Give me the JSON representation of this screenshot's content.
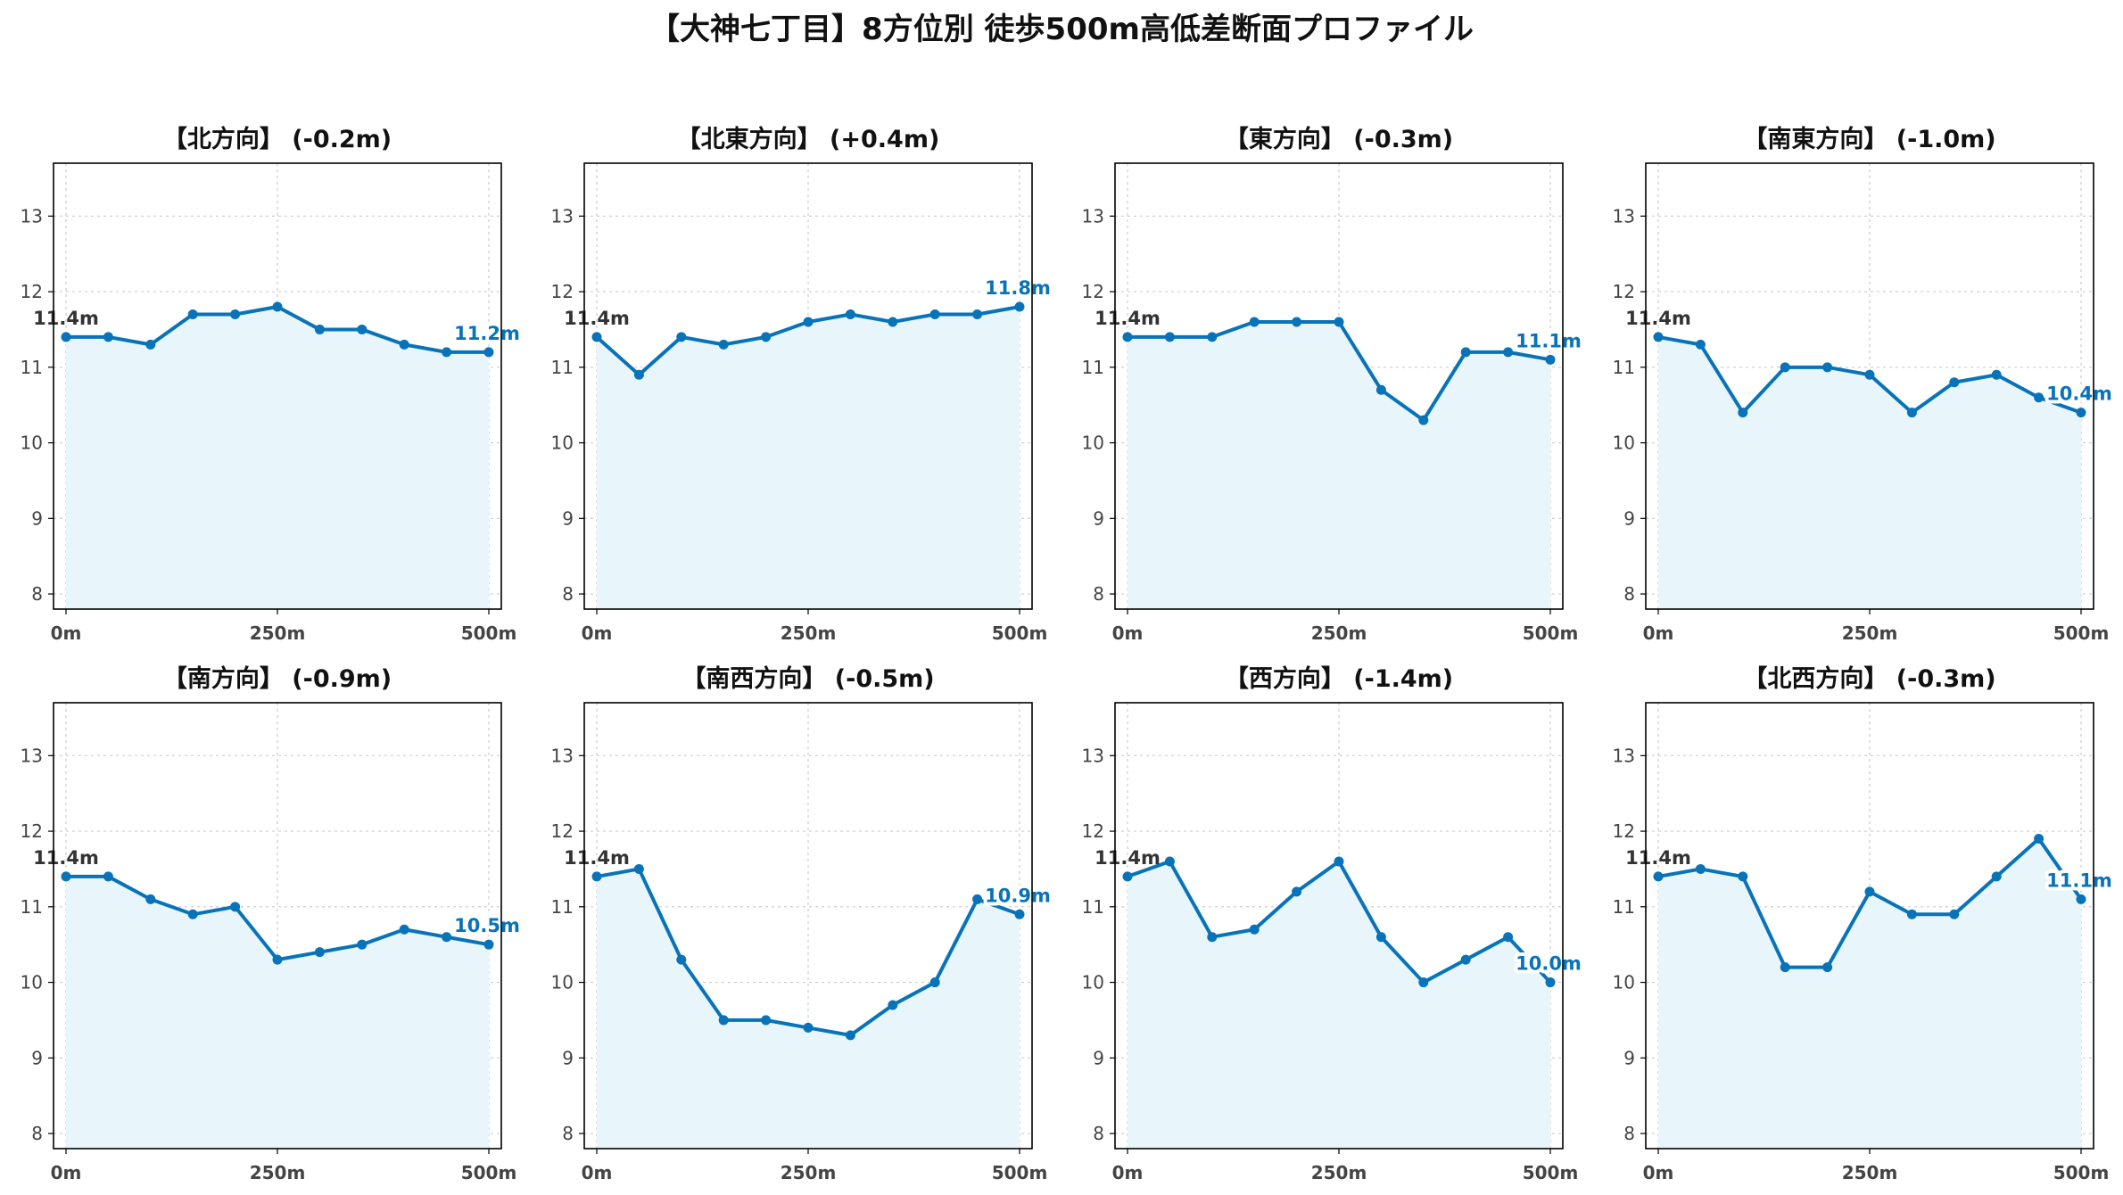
{
  "figure": {
    "title": "【大神七丁目】8方位別 徒歩500m高低差断面プロファイル"
  },
  "colors": {
    "line": "#0873b9",
    "fill": "#e8f6fc",
    "start_label": "#333333",
    "end_label": "#0873b9"
  },
  "chart_data": [
    {
      "type": "area",
      "title": "【北方向】 (-0.2m)",
      "x": [
        0,
        50,
        100,
        150,
        200,
        250,
        300,
        350,
        400,
        450,
        500
      ],
      "y": [
        11.4,
        11.4,
        11.3,
        11.7,
        11.7,
        11.8,
        11.5,
        11.5,
        11.3,
        11.2,
        11.2
      ],
      "xticks": [
        "0m",
        "250m",
        "500m"
      ],
      "yticks": [
        "8",
        "9",
        "10",
        "11",
        "12",
        "13"
      ],
      "ylim": [
        7.8,
        13.7
      ],
      "start_label": "11.4m",
      "end_label": "11.2m",
      "grid": true
    },
    {
      "type": "area",
      "title": "【北東方向】 (+0.4m)",
      "x": [
        0,
        50,
        100,
        150,
        200,
        250,
        300,
        350,
        400,
        450,
        500
      ],
      "y": [
        11.4,
        10.9,
        11.4,
        11.3,
        11.4,
        11.6,
        11.7,
        11.6,
        11.7,
        11.7,
        11.8
      ],
      "xticks": [
        "0m",
        "250m",
        "500m"
      ],
      "yticks": [
        "8",
        "9",
        "10",
        "11",
        "12",
        "13"
      ],
      "ylim": [
        7.8,
        13.7
      ],
      "start_label": "11.4m",
      "end_label": "11.8m",
      "grid": true
    },
    {
      "type": "area",
      "title": "【東方向】 (-0.3m)",
      "x": [
        0,
        50,
        100,
        150,
        200,
        250,
        300,
        350,
        400,
        450,
        500
      ],
      "y": [
        11.4,
        11.4,
        11.4,
        11.6,
        11.6,
        11.6,
        10.7,
        10.3,
        11.2,
        11.2,
        11.1
      ],
      "xticks": [
        "0m",
        "250m",
        "500m"
      ],
      "yticks": [
        "8",
        "9",
        "10",
        "11",
        "12",
        "13"
      ],
      "ylim": [
        7.8,
        13.7
      ],
      "start_label": "11.4m",
      "end_label": "11.1m",
      "grid": true
    },
    {
      "type": "area",
      "title": "【南東方向】 (-1.0m)",
      "x": [
        0,
        50,
        100,
        150,
        200,
        250,
        300,
        350,
        400,
        450,
        500
      ],
      "y": [
        11.4,
        11.3,
        10.4,
        11.0,
        11.0,
        10.9,
        10.4,
        10.8,
        10.9,
        10.6,
        10.4
      ],
      "xticks": [
        "0m",
        "250m",
        "500m"
      ],
      "yticks": [
        "8",
        "9",
        "10",
        "11",
        "12",
        "13"
      ],
      "ylim": [
        7.8,
        13.7
      ],
      "start_label": "11.4m",
      "end_label": "10.4m",
      "grid": true
    },
    {
      "type": "area",
      "title": "【南方向】 (-0.9m)",
      "x": [
        0,
        50,
        100,
        150,
        200,
        250,
        300,
        350,
        400,
        450,
        500
      ],
      "y": [
        11.4,
        11.4,
        11.1,
        10.9,
        11.0,
        10.3,
        10.4,
        10.5,
        10.7,
        10.6,
        10.5
      ],
      "xticks": [
        "0m",
        "250m",
        "500m"
      ],
      "yticks": [
        "8",
        "9",
        "10",
        "11",
        "12",
        "13"
      ],
      "ylim": [
        7.8,
        13.7
      ],
      "start_label": "11.4m",
      "end_label": "10.5m",
      "grid": true
    },
    {
      "type": "area",
      "title": "【南西方向】 (-0.5m)",
      "x": [
        0,
        50,
        100,
        150,
        200,
        250,
        300,
        350,
        400,
        450,
        500
      ],
      "y": [
        11.4,
        11.5,
        10.3,
        9.5,
        9.5,
        9.4,
        9.3,
        9.7,
        10.0,
        11.1,
        10.9
      ],
      "xticks": [
        "0m",
        "250m",
        "500m"
      ],
      "yticks": [
        "8",
        "9",
        "10",
        "11",
        "12",
        "13"
      ],
      "ylim": [
        7.8,
        13.7
      ],
      "start_label": "11.4m",
      "end_label": "10.9m",
      "grid": true
    },
    {
      "type": "area",
      "title": "【西方向】 (-1.4m)",
      "x": [
        0,
        50,
        100,
        150,
        200,
        250,
        300,
        350,
        400,
        450,
        500
      ],
      "y": [
        11.4,
        11.6,
        10.6,
        10.7,
        11.2,
        11.6,
        10.6,
        10.0,
        10.3,
        10.6,
        10.0
      ],
      "xticks": [
        "0m",
        "250m",
        "500m"
      ],
      "yticks": [
        "8",
        "9",
        "10",
        "11",
        "12",
        "13"
      ],
      "ylim": [
        7.8,
        13.7
      ],
      "start_label": "11.4m",
      "end_label": "10.0m",
      "grid": true
    },
    {
      "type": "area",
      "title": "【北西方向】 (-0.3m)",
      "x": [
        0,
        50,
        100,
        150,
        200,
        250,
        300,
        350,
        400,
        450,
        500
      ],
      "y": [
        11.4,
        11.5,
        11.4,
        10.2,
        10.2,
        11.2,
        10.9,
        10.9,
        11.4,
        11.9,
        11.1
      ],
      "xticks": [
        "0m",
        "250m",
        "500m"
      ],
      "yticks": [
        "8",
        "9",
        "10",
        "11",
        "12",
        "13"
      ],
      "ylim": [
        7.8,
        13.7
      ],
      "start_label": "11.4m",
      "end_label": "11.1m",
      "grid": true
    }
  ]
}
